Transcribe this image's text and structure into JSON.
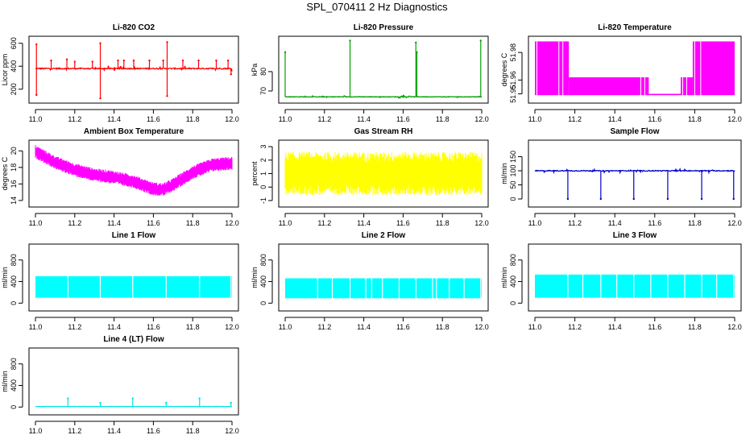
{
  "page_title": "SPL_070411  2 Hz Diagnostics",
  "chart_data": [
    {
      "type": "line",
      "title": "Li-820 CO2",
      "ylabel": "Licor ppm",
      "xlim": [
        11.0,
        12.0
      ],
      "ylim": [
        100,
        640
      ],
      "xticks": [
        "11.0",
        "11.2",
        "11.4",
        "11.6",
        "11.8",
        "12.0"
      ],
      "yticks": [
        {
          "v": 200,
          "label": "200"
        },
        {
          "v": 400,
          "label": "400"
        },
        {
          "v": 600,
          "label": "600"
        }
      ],
      "color": "#ff0000",
      "series": [
        {
          "kind": "baseline_spikes",
          "baseline": 380,
          "noise": 10,
          "minor_noise": 25,
          "spikes": [
            [
              11.005,
              590
            ],
            [
              11.005,
              150
            ],
            [
              11.08,
              450
            ],
            [
              11.16,
              460
            ],
            [
              11.2,
              440
            ],
            [
              11.29,
              440
            ],
            [
              11.33,
              600
            ],
            [
              11.33,
              120
            ],
            [
              11.42,
              450
            ],
            [
              11.45,
              450
            ],
            [
              11.5,
              450
            ],
            [
              11.58,
              450
            ],
            [
              11.65,
              450
            ],
            [
              11.67,
              610
            ],
            [
              11.67,
              140
            ],
            [
              11.75,
              450
            ],
            [
              11.83,
              450
            ],
            [
              11.92,
              450
            ],
            [
              11.98,
              450
            ],
            [
              11.995,
              330
            ]
          ]
        }
      ]
    },
    {
      "type": "line",
      "title": "Li-820 Pressure",
      "ylabel": "kPa",
      "xlim": [
        11.0,
        12.0
      ],
      "ylim": [
        65,
        97
      ],
      "xticks": [
        "11.0",
        "11.2",
        "11.4",
        "11.6",
        "11.8",
        "12.0"
      ],
      "yticks": [
        {
          "v": 70,
          "label": "70"
        },
        {
          "v": 80,
          "label": "80"
        }
      ],
      "color": "#00a000",
      "series": [
        {
          "kind": "baseline_spikes",
          "baseline": 67,
          "noise": 0.3,
          "minor_noise": 0.6,
          "spikes": [
            [
              11.0,
              90
            ],
            [
              11.33,
              96
            ],
            [
              11.665,
              95
            ],
            [
              11.67,
              90
            ],
            [
              11.995,
              96
            ]
          ]
        }
      ]
    },
    {
      "type": "area",
      "title": "Li-820 Temperature",
      "ylabel": "degrees C",
      "xlim": [
        11.0,
        12.0
      ],
      "ylim": [
        51.945,
        51.99
      ],
      "xticks": [
        "11.0",
        "11.2",
        "11.4",
        "11.6",
        "11.8",
        "12.0"
      ],
      "yticks": [
        {
          "v": 51.95,
          "label": "51.95"
        },
        {
          "v": 51.96,
          "label": "51.96"
        },
        {
          "v": 51.98,
          "label": "51.98"
        }
      ],
      "color": "#ff00ff",
      "series": [
        {
          "kind": "band_steps",
          "segments": [
            {
              "x0": 11.0,
              "x1": 11.17,
              "lo": 51.949,
              "hi": 51.988
            },
            {
              "x0": 11.17,
              "x1": 11.52,
              "lo": 51.949,
              "hi": 51.962
            },
            {
              "x0": 11.52,
              "x1": 11.57,
              "lo": 51.949,
              "hi": 51.962
            },
            {
              "x0": 11.57,
              "x1": 11.73,
              "lo": 51.949,
              "hi": 51.95
            },
            {
              "x0": 11.73,
              "x1": 11.79,
              "lo": 51.949,
              "hi": 51.962
            },
            {
              "x0": 11.79,
              "x1": 12.0,
              "lo": 51.949,
              "hi": 51.988
            }
          ]
        }
      ]
    },
    {
      "type": "area",
      "title": "Ambient Box Temperature",
      "ylabel": "degrees C",
      "xlim": [
        11.0,
        12.0
      ],
      "ylim": [
        13.5,
        21
      ],
      "xticks": [
        "11.0",
        "11.2",
        "11.4",
        "11.6",
        "11.8",
        "12.0"
      ],
      "yticks": [
        {
          "v": 14,
          "label": "14"
        },
        {
          "v": 16,
          "label": "16"
        },
        {
          "v": 18,
          "label": "18"
        },
        {
          "v": 20,
          "label": "20"
        }
      ],
      "color": "#ff00ff",
      "series": [
        {
          "kind": "noisy_band",
          "center_x": [
            11.0,
            11.1,
            11.2,
            11.3,
            11.4,
            11.5,
            11.6,
            11.65,
            11.7,
            11.8,
            11.9,
            12.0
          ],
          "center_y": [
            19.9,
            18.6,
            17.7,
            17.1,
            16.8,
            16.3,
            15.4,
            15.3,
            15.9,
            17.4,
            18.3,
            18.5
          ],
          "halfwidth": 0.8
        }
      ]
    },
    {
      "type": "area",
      "title": "Gas Stream RH",
      "ylabel": "percent",
      "xlim": [
        11.0,
        12.0
      ],
      "ylim": [
        -1.3,
        3.3
      ],
      "xticks": [
        "11.0",
        "11.2",
        "11.4",
        "11.6",
        "11.8",
        "12.0"
      ],
      "yticks": [
        {
          "v": -1,
          "label": "-1"
        },
        {
          "v": 0,
          "label": "0"
        },
        {
          "v": 1,
          "label": "1"
        },
        {
          "v": 2,
          "label": "2"
        },
        {
          "v": 3,
          "label": "3"
        }
      ],
      "color": "#ffff00",
      "series": [
        {
          "kind": "noisy_band",
          "center_x": [
            11.0,
            12.0
          ],
          "center_y": [
            1.0,
            1.0
          ],
          "halfwidth": 1.6
        }
      ]
    },
    {
      "type": "line",
      "title": "Sample Flow",
      "ylabel": "ml/min",
      "xlim": [
        11.0,
        12.0
      ],
      "ylim": [
        -20,
        200
      ],
      "xticks": [
        "11.0",
        "11.2",
        "11.4",
        "11.6",
        "11.8",
        "12.0"
      ],
      "yticks": [
        {
          "v": 0,
          "label": "0"
        },
        {
          "v": 50,
          "label": "50"
        },
        {
          "v": 100,
          "label": "100"
        },
        {
          "v": 150,
          "label": "150"
        }
      ],
      "color": "#0000cc",
      "series": [
        {
          "kind": "baseline_spikes",
          "baseline": 100,
          "noise": 3,
          "minor_noise": 6,
          "spikes": [
            [
              11.165,
              0
            ],
            [
              11.33,
              0
            ],
            [
              11.495,
              0
            ],
            [
              11.665,
              0
            ],
            [
              11.835,
              0
            ],
            [
              11.995,
              0
            ]
          ]
        }
      ]
    },
    {
      "type": "area",
      "title": "Line 1 Flow",
      "ylabel": "ml/min",
      "xlim": [
        11.0,
        12.0
      ],
      "ylim": [
        -100,
        1050
      ],
      "xticks": [
        "11.0",
        "11.2",
        "11.4",
        "11.6",
        "11.8",
        "12.0"
      ],
      "yticks": [
        {
          "v": 0,
          "label": "0"
        },
        {
          "v": 400,
          "label": "400"
        },
        {
          "v": 800,
          "label": "800"
        }
      ],
      "color": "#00ffff",
      "series": [
        {
          "kind": "band_gaps",
          "lo": 100,
          "hi": 500,
          "gaps": [
            11.165,
            11.33,
            11.495,
            11.665,
            11.835,
            11.995
          ]
        }
      ]
    },
    {
      "type": "area",
      "title": "Line 2 Flow",
      "ylabel": "ml/min",
      "xlim": [
        11.0,
        12.0
      ],
      "ylim": [
        -100,
        1050
      ],
      "xticks": [
        "11.0",
        "11.2",
        "11.4",
        "11.6",
        "11.8",
        "12.0"
      ],
      "yticks": [
        {
          "v": 0,
          "label": "0"
        },
        {
          "v": 400,
          "label": "400"
        },
        {
          "v": 800,
          "label": "800"
        }
      ],
      "color": "#00ffff",
      "series": [
        {
          "kind": "band_gaps",
          "lo": 90,
          "hi": 460,
          "gaps": [
            11.165,
            11.24,
            11.33,
            11.41,
            11.44,
            11.495,
            11.58,
            11.665,
            11.75,
            11.77,
            11.835,
            11.91,
            11.995
          ]
        }
      ]
    },
    {
      "type": "area",
      "title": "Line 3 Flow",
      "ylabel": "ml/min",
      "xlim": [
        11.0,
        12.0
      ],
      "ylim": [
        -100,
        1050
      ],
      "xticks": [
        "11.0",
        "11.2",
        "11.4",
        "11.6",
        "11.8",
        "12.0"
      ],
      "yticks": [
        {
          "v": 0,
          "label": "0"
        },
        {
          "v": 400,
          "label": "400"
        },
        {
          "v": 800,
          "label": "800"
        }
      ],
      "color": "#00ffff",
      "series": [
        {
          "kind": "band_gaps",
          "lo": 100,
          "hi": 530,
          "gaps": [
            11.165,
            11.24,
            11.33,
            11.41,
            11.495,
            11.58,
            11.665,
            11.75,
            11.835,
            11.91,
            11.995
          ]
        }
      ]
    },
    {
      "type": "line",
      "title": "Line 4 (LT) Flow",
      "ylabel": "ml/min",
      "xlim": [
        11.0,
        12.0
      ],
      "ylim": [
        -100,
        1050
      ],
      "xticks": [
        "11.0",
        "11.2",
        "11.4",
        "11.6",
        "11.8",
        "12.0"
      ],
      "yticks": [
        {
          "v": 0,
          "label": "0"
        },
        {
          "v": 400,
          "label": "400"
        },
        {
          "v": 800,
          "label": "800"
        }
      ],
      "color": "#00e5e5",
      "series": [
        {
          "kind": "baseline_spikes",
          "baseline": 10,
          "noise": 2,
          "minor_noise": 4,
          "spikes": [
            [
              11.165,
              160
            ],
            [
              11.33,
              80
            ],
            [
              11.495,
              160
            ],
            [
              11.665,
              80
            ],
            [
              11.835,
              160
            ],
            [
              11.995,
              80
            ]
          ]
        }
      ]
    }
  ]
}
